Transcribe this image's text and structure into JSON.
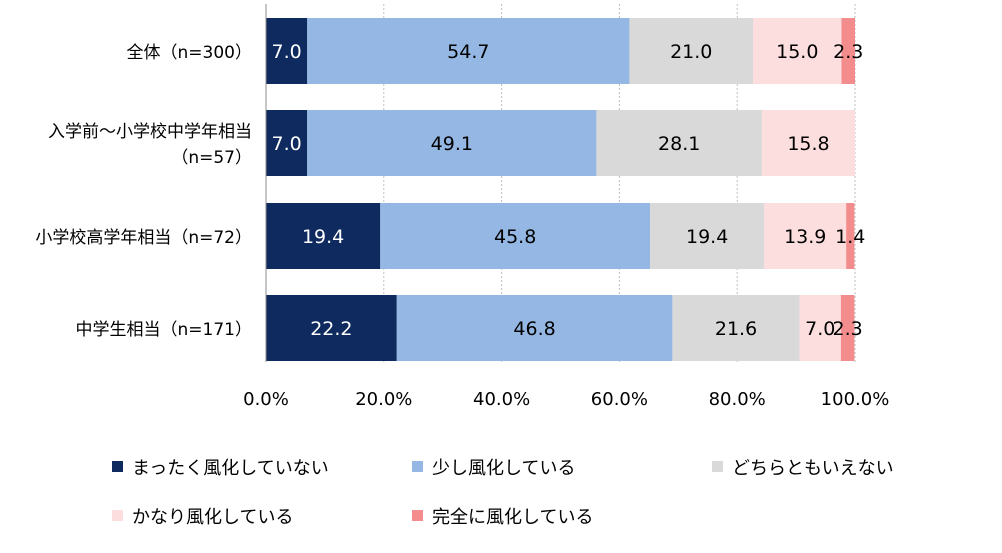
{
  "chart_data": {
    "type": "bar",
    "orientation": "horizontal",
    "stacked": true,
    "categories": [
      [
        "全体（n=300）"
      ],
      [
        "入学前～小学校中学年相当",
        "（n=57）"
      ],
      [
        "小学校高学年相当（n=72）"
      ],
      [
        "中学生相当（n=171）"
      ]
    ],
    "series": [
      {
        "name": "まったく風化していない",
        "color": "#0e2a5e",
        "label_color": "#ffffff",
        "values": [
          7.0,
          7.0,
          19.4,
          22.2
        ],
        "labels": [
          "7.0",
          "7.0",
          "19.4",
          "22.2"
        ]
      },
      {
        "name": "少し風化している",
        "color": "#95b7e3",
        "label_color": "#000000",
        "values": [
          54.7,
          49.1,
          45.8,
          46.8
        ],
        "labels": [
          "54.7",
          "49.1",
          "45.8",
          "46.8"
        ]
      },
      {
        "name": "どちらともいえない",
        "color": "#d9d9d9",
        "label_color": "#000000",
        "values": [
          21.0,
          28.1,
          19.4,
          21.6
        ],
        "labels": [
          "21.0",
          "28.1",
          "19.4",
          "21.6"
        ]
      },
      {
        "name": "かなり風化している",
        "color": "#fddede",
        "label_color": "#000000",
        "values": [
          15.0,
          15.8,
          13.9,
          7.0
        ],
        "labels": [
          "15.0",
          "15.8",
          "13.9",
          "7.0"
        ]
      },
      {
        "name": "完全に風化している",
        "color": "#f38c8c",
        "label_color": "#000000",
        "values": [
          2.3,
          0,
          1.4,
          2.3
        ],
        "labels": [
          "2.3",
          "",
          "1.4",
          "2.3"
        ]
      }
    ],
    "x_ticks": [
      "0.0%",
      "20.0%",
      "40.0%",
      "60.0%",
      "80.0%",
      "100.0%"
    ],
    "xlim": [
      0,
      100
    ],
    "grid": true,
    "legend_position": "bottom"
  }
}
